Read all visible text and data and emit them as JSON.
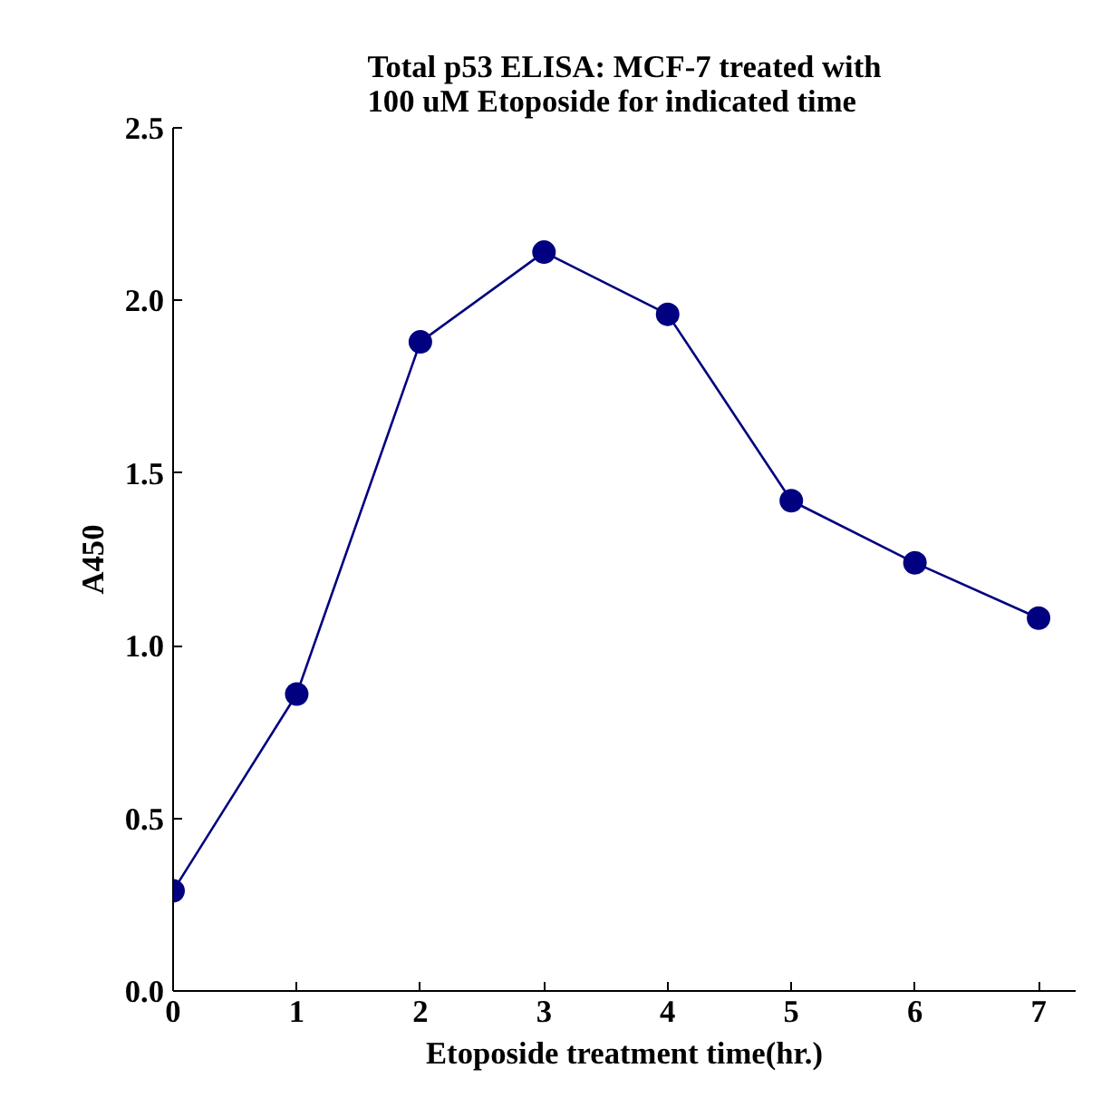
{
  "chart_data": {
    "type": "line",
    "title": "Total p53 ELISA: MCF-7 treated with\n100 uM Etoposide for indicated time",
    "xlabel": "Etoposide treatment time(hr.)",
    "ylabel": "A450",
    "x": [
      0,
      1,
      2,
      3,
      4,
      5,
      6,
      7
    ],
    "series": [
      {
        "color": "#000080",
        "values": [
          0.29,
          0.86,
          1.88,
          2.14,
          1.96,
          1.42,
          1.24,
          1.08
        ]
      }
    ],
    "xlim": [
      0,
      7.3
    ],
    "xticks": [
      0,
      1,
      2,
      3,
      4,
      5,
      6,
      7
    ],
    "ylim": [
      0,
      2.5
    ],
    "yticks": [
      {
        "value": 0,
        "label": "0.0"
      },
      {
        "value": 0.5,
        "label": "0.5"
      },
      {
        "value": 1,
        "label": "1.0"
      },
      {
        "value": 1.5,
        "label": "1.5"
      },
      {
        "value": 2,
        "label": "2.0"
      },
      {
        "value": 2.5,
        "label": "2.5"
      }
    ],
    "grid": false,
    "marker": "circle",
    "line_style": "solid"
  }
}
